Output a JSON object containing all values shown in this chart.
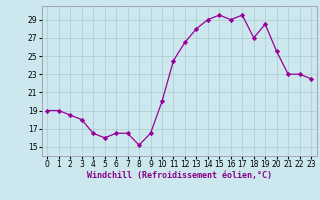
{
  "x": [
    0,
    1,
    2,
    3,
    4,
    5,
    6,
    7,
    8,
    9,
    10,
    11,
    12,
    13,
    14,
    15,
    16,
    17,
    18,
    19,
    20,
    21,
    22,
    23
  ],
  "y": [
    19.0,
    19.0,
    18.5,
    18.0,
    16.5,
    16.0,
    16.5,
    16.5,
    15.2,
    16.5,
    20.0,
    24.5,
    26.5,
    28.0,
    29.0,
    29.5,
    29.0,
    29.5,
    27.0,
    28.5,
    25.5,
    23.0,
    23.0,
    22.5
  ],
  "line_color": "#990099",
  "marker": "D",
  "markersize": 2.2,
  "linewidth": 0.9,
  "bg_color": "#cce8ee",
  "grid_color": "#aacccc",
  "xlabel": "Windchill (Refroidissement éolien,°C)",
  "xlabel_fontsize": 6.0,
  "ylabel_ticks": [
    15,
    17,
    19,
    21,
    23,
    25,
    27,
    29
  ],
  "ylim": [
    14.0,
    30.5
  ],
  "xlim": [
    -0.5,
    23.5
  ],
  "xtick_labels": [
    "0",
    "1",
    "2",
    "3",
    "4",
    "5",
    "6",
    "7",
    "8",
    "9",
    "10",
    "11",
    "12",
    "13",
    "14",
    "15",
    "16",
    "17",
    "18",
    "19",
    "20",
    "21",
    "22",
    "23"
  ],
  "tick_fontsize": 5.5
}
